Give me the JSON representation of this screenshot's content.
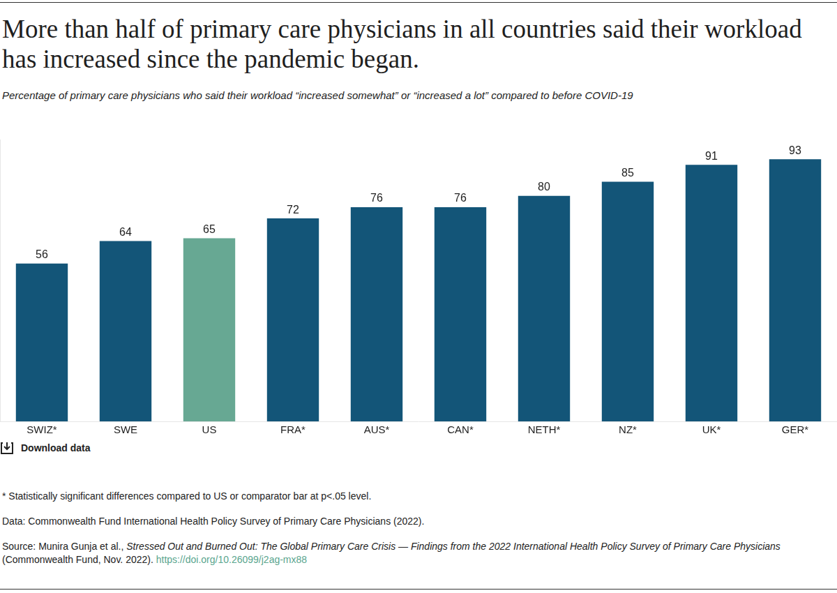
{
  "chart_data": {
    "type": "bar",
    "title": "More than half of primary care physicians in all countries said their workload has increased since the pandemic began.",
    "subtitle": "Percentage of primary care physicians who said their workload “increased somewhat” or “increased a lot” compared to before COVID-19",
    "categories": [
      "SWIZ*",
      "SWE",
      "US",
      "FRA*",
      "AUS*",
      "CAN*",
      "NETH*",
      "NZ*",
      "UK*",
      "GER*"
    ],
    "values": [
      56,
      64,
      65,
      72,
      76,
      76,
      80,
      85,
      91,
      93
    ],
    "colors": [
      "#135578",
      "#135578",
      "#67a893",
      "#135578",
      "#135578",
      "#135578",
      "#135578",
      "#135578",
      "#135578",
      "#135578"
    ],
    "ylim": [
      0,
      100
    ],
    "grid": false,
    "data_labels": true,
    "tick_labels": "x",
    "download_label": "Download data",
    "notes": [
      "* Statistically significant differences compared to US or comparator bar at p<.05 level.",
      "Data: Commonwealth Fund International Health Policy Survey of Primary Care Physicians (2022)."
    ],
    "source": {
      "prefix": "Source: Munira Gunja et al.,",
      "publication": "Stressed Out and Burned Out: The Global Primary Care Crisis — Findings from the 2022 International Health Policy Survey of Primary Care Physicians",
      "suffix": "(Commonwealth Fund, Nov. 2022).",
      "link": "https://doi.org/10.26099/j2ag-mx88"
    }
  }
}
